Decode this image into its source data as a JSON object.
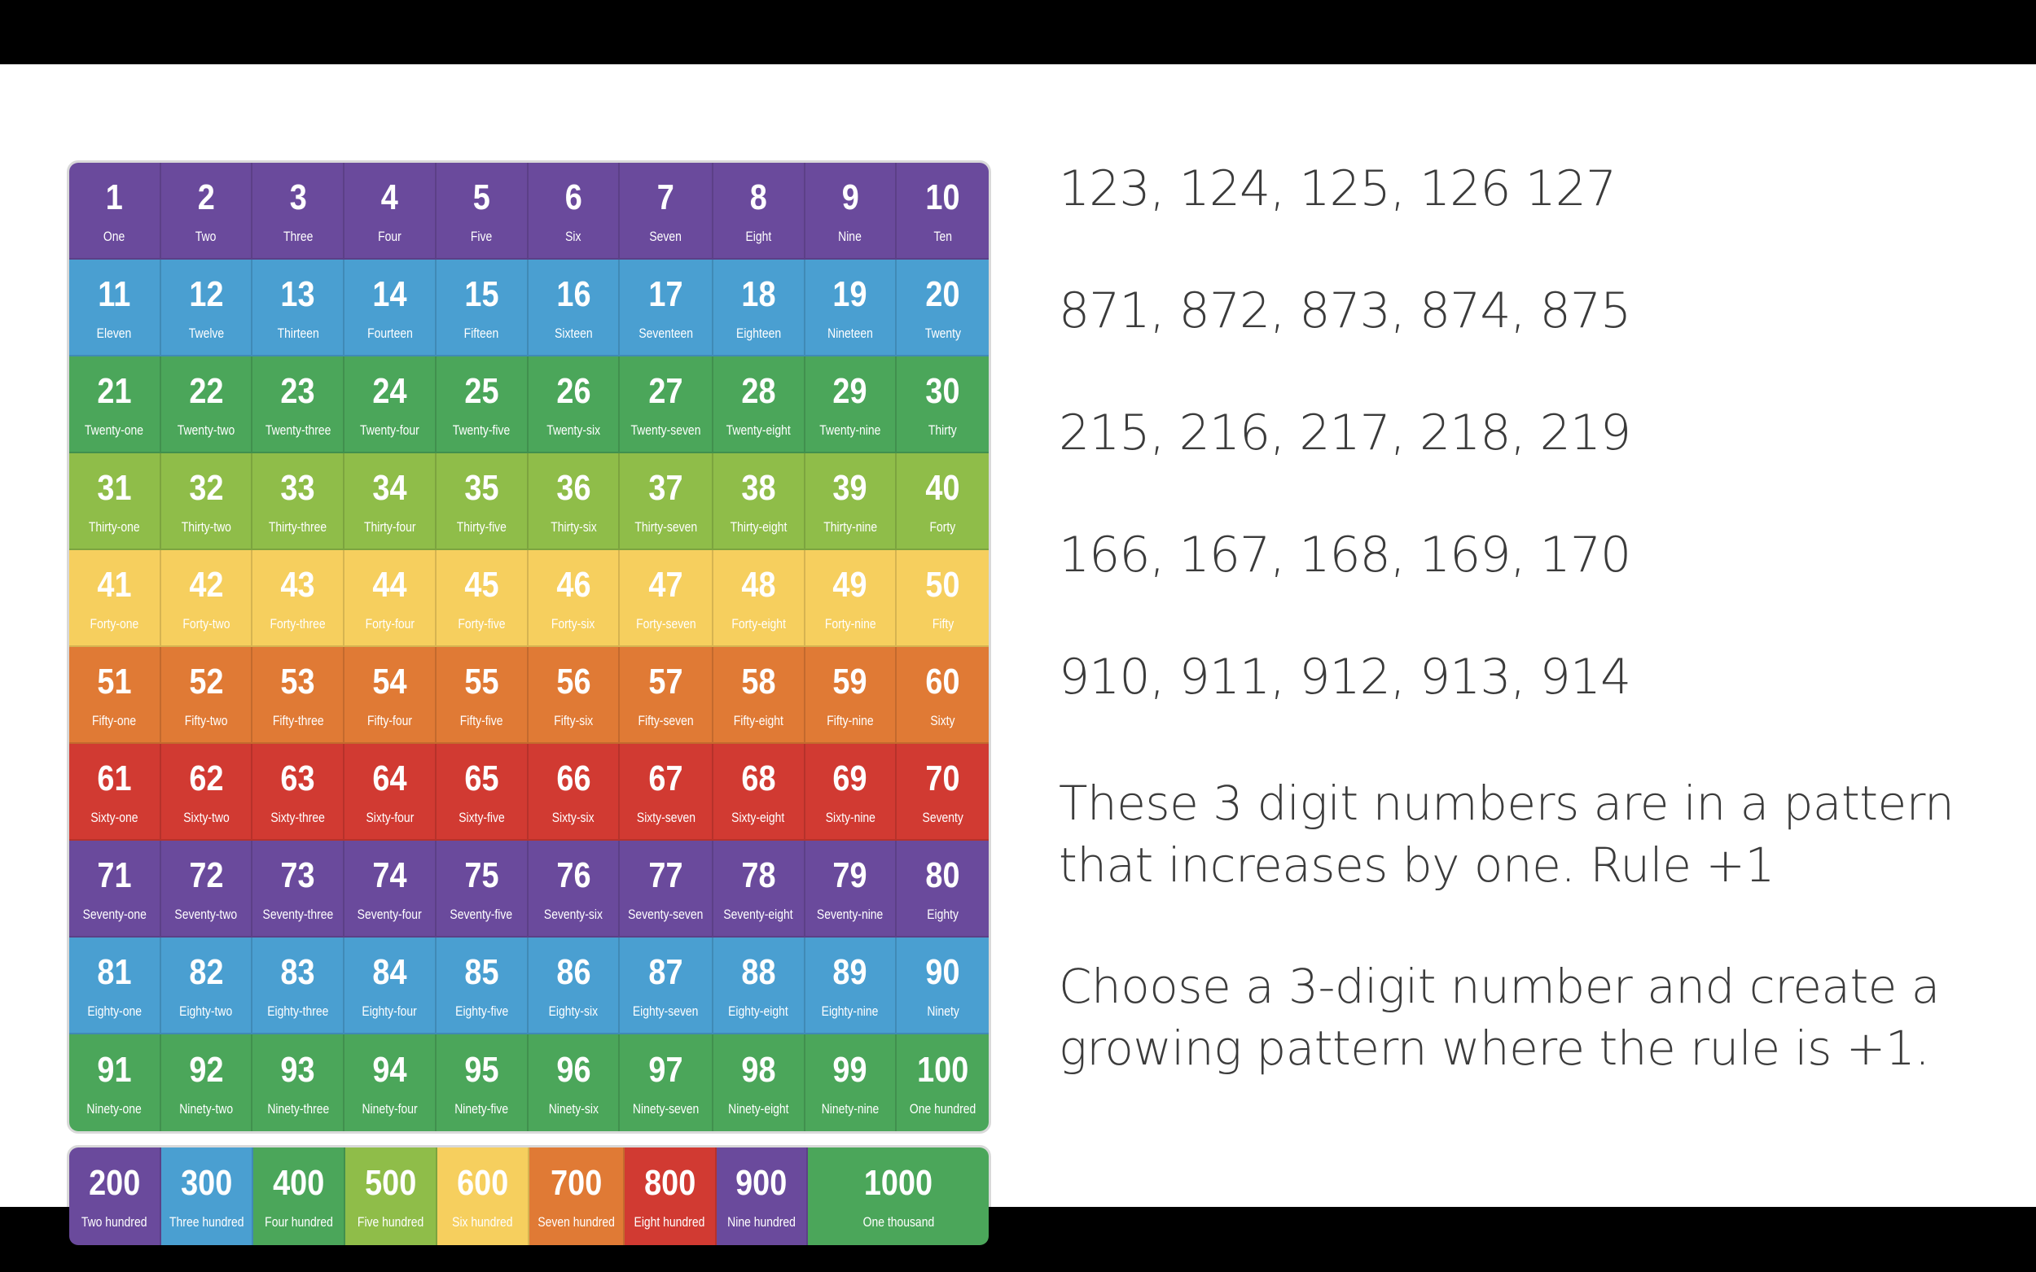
{
  "colors": {
    "purple": "#6a4a9c",
    "blue": "#4a9fd1",
    "green": "#4ba65a",
    "lime": "#8fbd49",
    "yellow": "#f6cf5e",
    "orange": "#e07a35",
    "red": "#d13a32"
  },
  "hundred_chart": {
    "row_colors": [
      "purple",
      "blue",
      "green",
      "lime",
      "yellow",
      "orange",
      "red",
      "purple",
      "blue",
      "green"
    ],
    "cells": [
      {
        "n": "1",
        "w": "One"
      },
      {
        "n": "2",
        "w": "Two"
      },
      {
        "n": "3",
        "w": "Three"
      },
      {
        "n": "4",
        "w": "Four"
      },
      {
        "n": "5",
        "w": "Five"
      },
      {
        "n": "6",
        "w": "Six"
      },
      {
        "n": "7",
        "w": "Seven"
      },
      {
        "n": "8",
        "w": "Eight"
      },
      {
        "n": "9",
        "w": "Nine"
      },
      {
        "n": "10",
        "w": "Ten"
      },
      {
        "n": "11",
        "w": "Eleven"
      },
      {
        "n": "12",
        "w": "Twelve"
      },
      {
        "n": "13",
        "w": "Thirteen"
      },
      {
        "n": "14",
        "w": "Fourteen"
      },
      {
        "n": "15",
        "w": "Fifteen"
      },
      {
        "n": "16",
        "w": "Sixteen"
      },
      {
        "n": "17",
        "w": "Seventeen"
      },
      {
        "n": "18",
        "w": "Eighteen"
      },
      {
        "n": "19",
        "w": "Nineteen"
      },
      {
        "n": "20",
        "w": "Twenty"
      },
      {
        "n": "21",
        "w": "Twenty-one"
      },
      {
        "n": "22",
        "w": "Twenty-two"
      },
      {
        "n": "23",
        "w": "Twenty-three"
      },
      {
        "n": "24",
        "w": "Twenty-four"
      },
      {
        "n": "25",
        "w": "Twenty-five"
      },
      {
        "n": "26",
        "w": "Twenty-six"
      },
      {
        "n": "27",
        "w": "Twenty-seven"
      },
      {
        "n": "28",
        "w": "Twenty-eight"
      },
      {
        "n": "29",
        "w": "Twenty-nine"
      },
      {
        "n": "30",
        "w": "Thirty"
      },
      {
        "n": "31",
        "w": "Thirty-one"
      },
      {
        "n": "32",
        "w": "Thirty-two"
      },
      {
        "n": "33",
        "w": "Thirty-three"
      },
      {
        "n": "34",
        "w": "Thirty-four"
      },
      {
        "n": "35",
        "w": "Thirty-five"
      },
      {
        "n": "36",
        "w": "Thirty-six"
      },
      {
        "n": "37",
        "w": "Thirty-seven"
      },
      {
        "n": "38",
        "w": "Thirty-eight"
      },
      {
        "n": "39",
        "w": "Thirty-nine"
      },
      {
        "n": "40",
        "w": "Forty"
      },
      {
        "n": "41",
        "w": "Forty-one"
      },
      {
        "n": "42",
        "w": "Forty-two"
      },
      {
        "n": "43",
        "w": "Forty-three"
      },
      {
        "n": "44",
        "w": "Forty-four"
      },
      {
        "n": "45",
        "w": "Forty-five"
      },
      {
        "n": "46",
        "w": "Forty-six"
      },
      {
        "n": "47",
        "w": "Forty-seven"
      },
      {
        "n": "48",
        "w": "Forty-eight"
      },
      {
        "n": "49",
        "w": "Forty-nine"
      },
      {
        "n": "50",
        "w": "Fifty"
      },
      {
        "n": "51",
        "w": "Fifty-one"
      },
      {
        "n": "52",
        "w": "Fifty-two"
      },
      {
        "n": "53",
        "w": "Fifty-three"
      },
      {
        "n": "54",
        "w": "Fifty-four"
      },
      {
        "n": "55",
        "w": "Fifty-five"
      },
      {
        "n": "56",
        "w": "Fifty-six"
      },
      {
        "n": "57",
        "w": "Fifty-seven"
      },
      {
        "n": "58",
        "w": "Fifty-eight"
      },
      {
        "n": "59",
        "w": "Fifty-nine"
      },
      {
        "n": "60",
        "w": "Sixty"
      },
      {
        "n": "61",
        "w": "Sixty-one"
      },
      {
        "n": "62",
        "w": "Sixty-two"
      },
      {
        "n": "63",
        "w": "Sixty-three"
      },
      {
        "n": "64",
        "w": "Sixty-four"
      },
      {
        "n": "65",
        "w": "Sixty-five"
      },
      {
        "n": "66",
        "w": "Sixty-six"
      },
      {
        "n": "67",
        "w": "Sixty-seven"
      },
      {
        "n": "68",
        "w": "Sixty-eight"
      },
      {
        "n": "69",
        "w": "Sixty-nine"
      },
      {
        "n": "70",
        "w": "Seventy"
      },
      {
        "n": "71",
        "w": "Seventy-one"
      },
      {
        "n": "72",
        "w": "Seventy-two"
      },
      {
        "n": "73",
        "w": "Seventy-three"
      },
      {
        "n": "74",
        "w": "Seventy-four"
      },
      {
        "n": "75",
        "w": "Seventy-five"
      },
      {
        "n": "76",
        "w": "Seventy-six"
      },
      {
        "n": "77",
        "w": "Seventy-seven"
      },
      {
        "n": "78",
        "w": "Seventy-eight"
      },
      {
        "n": "79",
        "w": "Seventy-nine"
      },
      {
        "n": "80",
        "w": "Eighty"
      },
      {
        "n": "81",
        "w": "Eighty-one"
      },
      {
        "n": "82",
        "w": "Eighty-two"
      },
      {
        "n": "83",
        "w": "Eighty-three"
      },
      {
        "n": "84",
        "w": "Eighty-four"
      },
      {
        "n": "85",
        "w": "Eighty-five"
      },
      {
        "n": "86",
        "w": "Eighty-six"
      },
      {
        "n": "87",
        "w": "Eighty-seven"
      },
      {
        "n": "88",
        "w": "Eighty-eight"
      },
      {
        "n": "89",
        "w": "Eighty-nine"
      },
      {
        "n": "90",
        "w": "Ninety"
      },
      {
        "n": "91",
        "w": "Ninety-one"
      },
      {
        "n": "92",
        "w": "Ninety-two"
      },
      {
        "n": "93",
        "w": "Ninety-three"
      },
      {
        "n": "94",
        "w": "Ninety-four"
      },
      {
        "n": "95",
        "w": "Ninety-five"
      },
      {
        "n": "96",
        "w": "Ninety-six"
      },
      {
        "n": "97",
        "w": "Ninety-seven"
      },
      {
        "n": "98",
        "w": "Ninety-eight"
      },
      {
        "n": "99",
        "w": "Ninety-nine"
      },
      {
        "n": "100",
        "w": "One hundred"
      }
    ]
  },
  "hundreds_strip": [
    {
      "n": "200",
      "w": "Two hundred",
      "color": "purple"
    },
    {
      "n": "300",
      "w": "Three hundred",
      "color": "blue"
    },
    {
      "n": "400",
      "w": "Four hundred",
      "color": "green"
    },
    {
      "n": "500",
      "w": "Five hundred",
      "color": "lime"
    },
    {
      "n": "600",
      "w": "Six hundred",
      "color": "yellow"
    },
    {
      "n": "700",
      "w": "Seven hundred",
      "color": "orange"
    },
    {
      "n": "800",
      "w": "Eight hundred",
      "color": "red"
    },
    {
      "n": "900",
      "w": "Nine hundred",
      "color": "purple"
    },
    {
      "n": "1000",
      "w": "One thousand",
      "color": "green"
    }
  ],
  "text": {
    "seq1": "123, 124, 125, 126 127",
    "seq2": "871, 872, 873, 874, 875",
    "seq3": "215, 216, 217, 218, 219",
    "seq4": "166, 167, 168, 169, 170",
    "seq5": "910, 911, 912, 913, 914",
    "explanation": "These 3 digit numbers are in a pattern that increases by one. Rule +1",
    "task": "Choose a 3-digit number and create a growing pattern where the rule is +1."
  }
}
